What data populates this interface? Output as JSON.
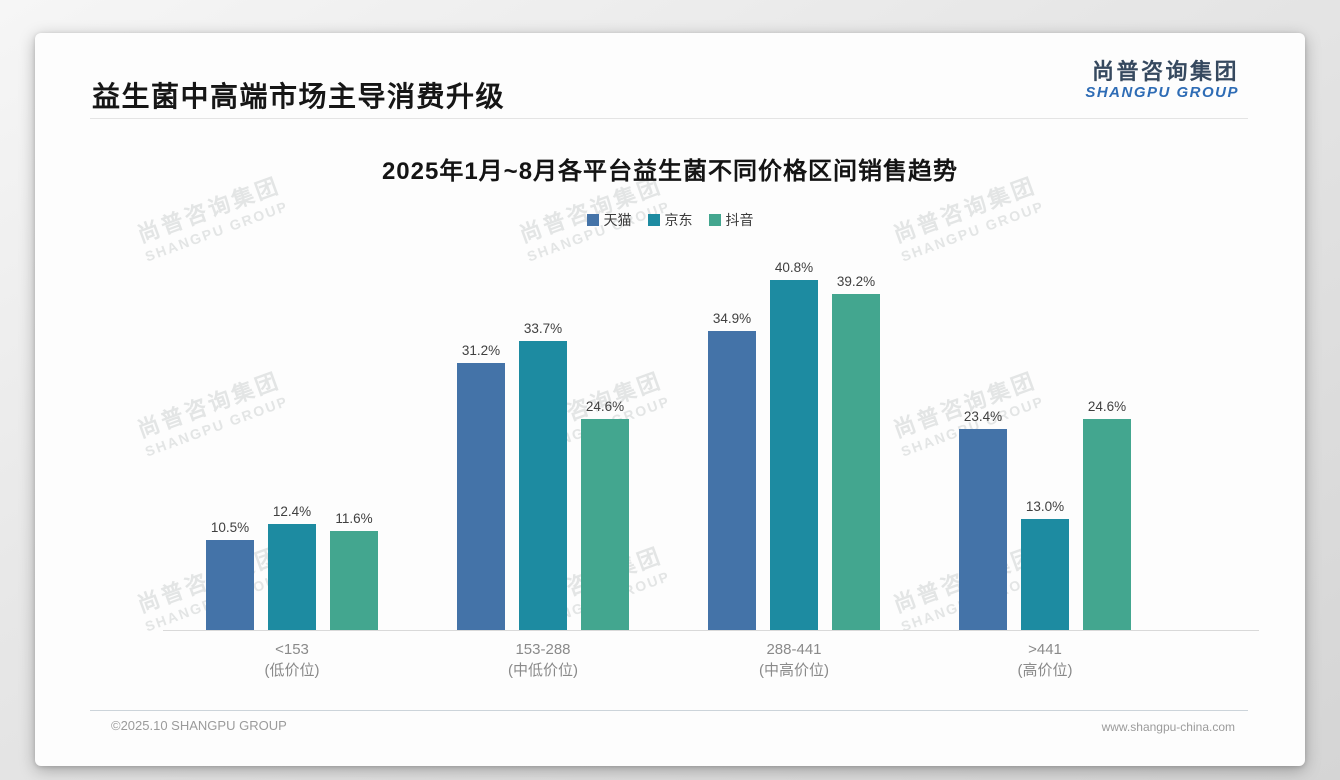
{
  "window": {
    "page_title": "益生菌中高端市场主导消费升级",
    "logo_cn": "尚普咨询集团",
    "logo_en": "SHANGPU GROUP",
    "footer_left": "©2025.10 SHANGPU GROUP",
    "footer_right": "www.shangpu-china.com",
    "watermark_cn": "尚普咨询集团",
    "watermark_en": "SHANGPU GROUP"
  },
  "chart_data": {
    "type": "bar",
    "title": "2025年1月~8月各平台益生菌不同价格区间销售趋势",
    "categories": [
      {
        "range": "<153",
        "tier": "(低价位)"
      },
      {
        "range": "153-288",
        "tier": "(中低价位)"
      },
      {
        "range": "288-441",
        "tier": "(中高价位)"
      },
      {
        "range": ">441",
        "tier": "(高价位)"
      }
    ],
    "series": [
      {
        "name": "天猫",
        "color": "#4473a8",
        "values": [
          10.5,
          31.2,
          34.9,
          23.4
        ]
      },
      {
        "name": "京东",
        "color": "#1d8ba1",
        "values": [
          12.4,
          33.7,
          40.8,
          13.0
        ]
      },
      {
        "name": "抖音",
        "color": "#43a68f",
        "values": [
          11.6,
          24.6,
          39.2,
          24.6
        ]
      }
    ],
    "value_suffix": "%",
    "ylim": [
      0,
      42
    ],
    "xlabel": "",
    "ylabel": "",
    "grid": false,
    "legend_position": "top-center",
    "label_color": "#404040",
    "axis_color": "#d9d9d9"
  }
}
